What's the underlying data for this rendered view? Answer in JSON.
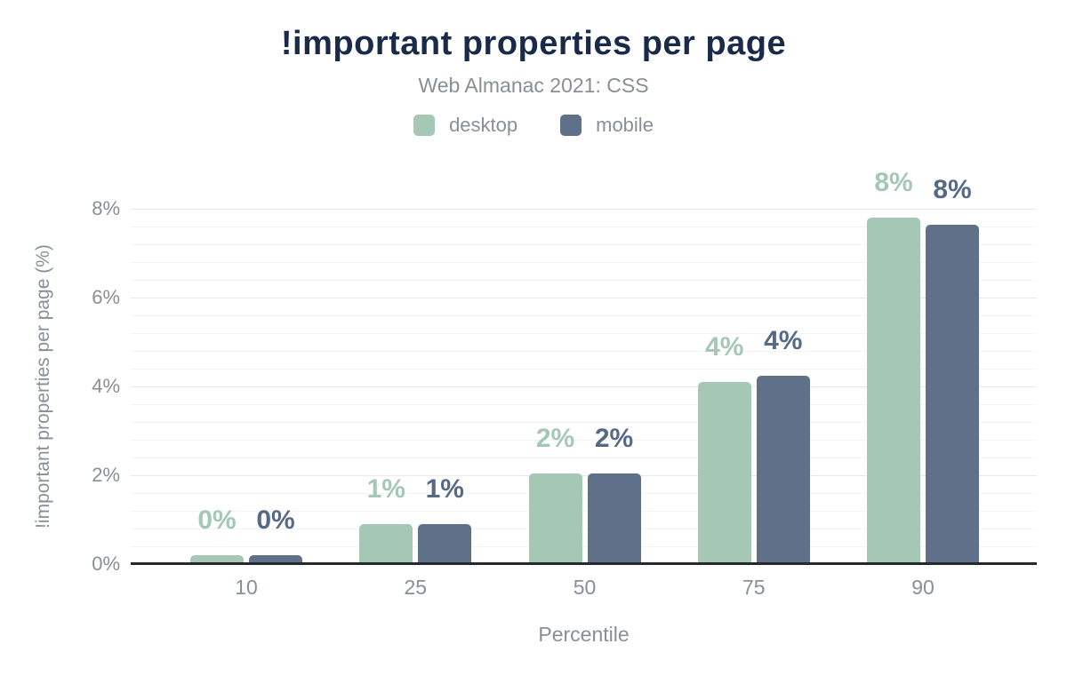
{
  "chart": {
    "title": "!important properties per page",
    "subtitle": "Web Almanac 2021: CSS"
  },
  "chart_data": {
    "type": "bar",
    "title": "!important properties per page",
    "subtitle": "Web Almanac 2021: CSS",
    "categories": [
      "10",
      "25",
      "50",
      "75",
      "90"
    ],
    "xlabel": "Percentile",
    "ylabel": "!important properties per page (%)",
    "ylim": [
      0,
      8
    ],
    "yticks": [
      0,
      2,
      4,
      6,
      8
    ],
    "ytick_labels": [
      "0%",
      "2%",
      "4%",
      "6%",
      "8%"
    ],
    "grid": true,
    "minor_grid_step": 0.4,
    "legend_position": "top",
    "series": [
      {
        "name": "desktop",
        "color": "#a5c8b6",
        "label_color": "#a5c8b6",
        "values": [
          0.2,
          0.9,
          2.05,
          4.1,
          7.8
        ],
        "labels": [
          "0%",
          "1%",
          "2%",
          "4%",
          "8%"
        ]
      },
      {
        "name": "mobile",
        "color": "#5f7089",
        "label_color": "#566a87",
        "values": [
          0.2,
          0.9,
          2.05,
          4.25,
          7.65
        ],
        "labels": [
          "0%",
          "1%",
          "2%",
          "4%",
          "8%"
        ]
      }
    ]
  },
  "colors": {
    "title_navy": "#1a2b49",
    "text_gray": "#878f97",
    "axis_line": "#26282b",
    "gridline_major": "#e7e8ea",
    "gridline_minor": "#f3f4f5",
    "background": "#ffffff"
  }
}
